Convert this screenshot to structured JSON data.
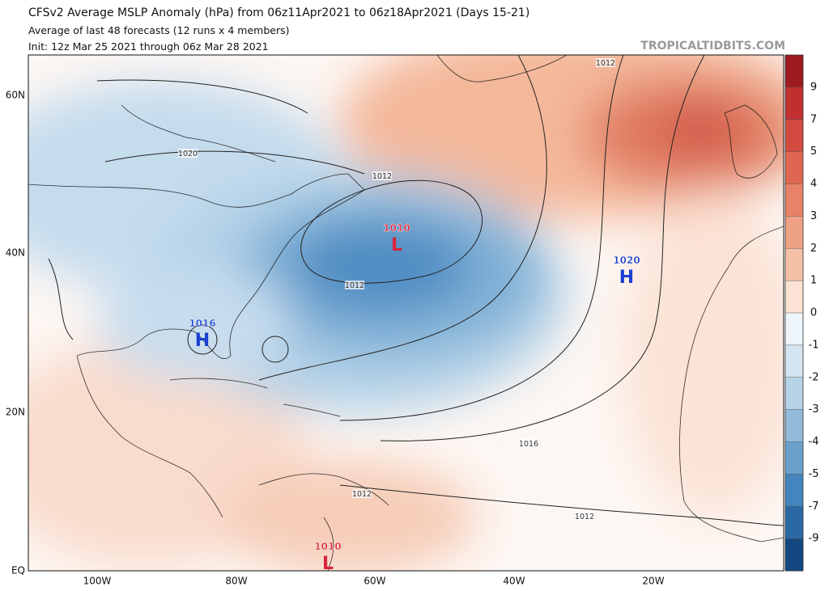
{
  "header": {
    "title": "CFSv2 Average MSLP Anomaly (hPa) from 06z11Apr2021 to 06z18Apr2021 (Days 15-21)",
    "subtitle": "Average of last 48 forecasts (12 runs x 4 members)",
    "init": "Init: 12z Mar 25 2021 through 06z Mar 28 2021",
    "credit": "TROPICALTIDBITS.COM"
  },
  "map": {
    "lat_labels": [
      "60N",
      "40N",
      "20N",
      "EQ"
    ],
    "lon_labels": [
      "100W",
      "80W",
      "60W",
      "40W",
      "20W"
    ],
    "pressure_centers": [
      {
        "value": "1010",
        "symbol": "L"
      },
      {
        "value": "1020",
        "symbol": "H"
      },
      {
        "value": "1016",
        "symbol": "H"
      },
      {
        "value": "1010",
        "symbol": "L"
      }
    ],
    "contour_labels": [
      "1012",
      "1020",
      "1012",
      "1012",
      "1016",
      "1012",
      "1012"
    ]
  },
  "colorbar": {
    "labels": [
      9,
      7,
      5,
      4,
      3,
      2,
      1,
      0,
      -1,
      -2,
      -3,
      -4,
      -5,
      -7,
      -9
    ],
    "colors": [
      "#9e1b20",
      "#c1302f",
      "#d34b40",
      "#df6650",
      "#e88268",
      "#efa185",
      "#f5c1a6",
      "#fbe2d5",
      "#eef5fa",
      "#d4e5f1",
      "#b6d3e8",
      "#92bbdb",
      "#6ba1cc",
      "#4585bd",
      "#2b69a5",
      "#12487f"
    ]
  }
}
